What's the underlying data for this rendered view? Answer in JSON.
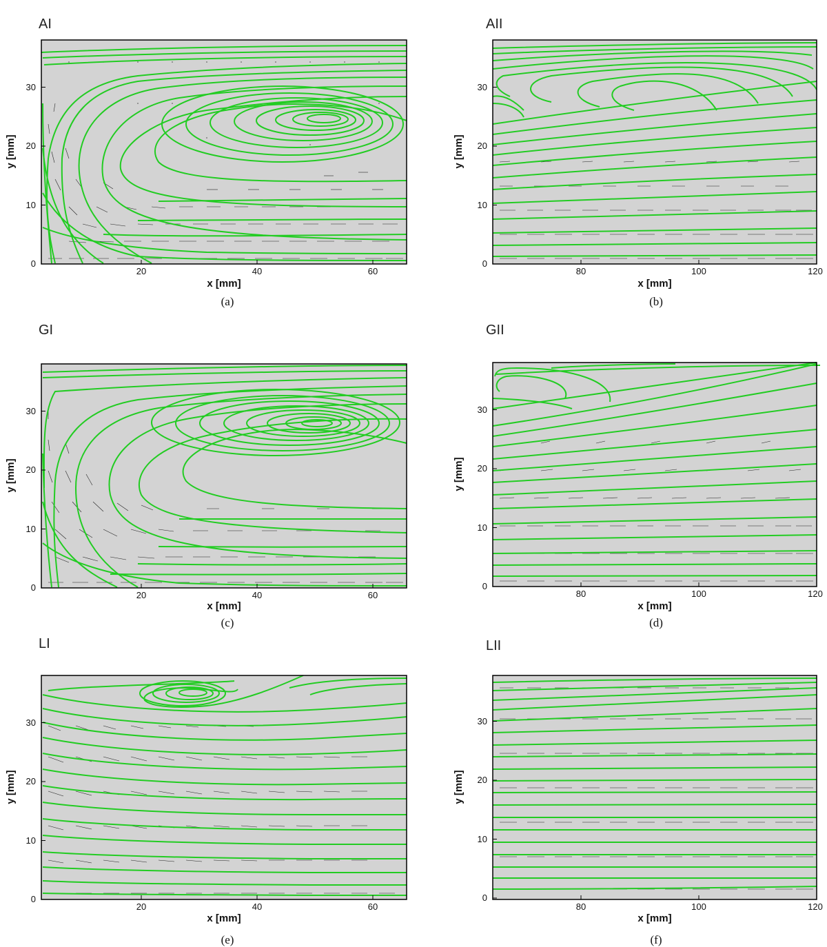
{
  "colors": {
    "background": "#d3d3d3",
    "streamline": "#22cc22",
    "vector": "#222222",
    "frame": "#000000"
  },
  "chart_data": [
    {
      "id": "a",
      "type": "streamline-vector-field",
      "title": "AI",
      "caption": "(a)",
      "xlabel": "x [mm]",
      "ylabel": "y [mm]",
      "xlim": [
        2,
        65
      ],
      "ylim": [
        0,
        38
      ],
      "xticks": [
        "20",
        "40",
        "60"
      ],
      "yticks": [
        "0",
        "10",
        "20",
        "30"
      ],
      "features": {
        "vortex_center": [
          50,
          24
        ],
        "vortex_radius": [
          28,
          10
        ],
        "near_wall_jet_max_y": 12
      }
    },
    {
      "id": "b",
      "type": "streamline-vector-field",
      "title": "AII",
      "caption": "(b)",
      "xlabel": "x [mm]",
      "ylabel": "y [mm]",
      "xlim": [
        65,
        120
      ],
      "ylim": [
        0,
        38
      ],
      "xticks": [
        "80",
        "100",
        "120"
      ],
      "yticks": [
        "0",
        "10",
        "20",
        "30"
      ],
      "features": {
        "recirculation_center_y": 27,
        "recirculation_tip_x": 120
      }
    },
    {
      "id": "c",
      "type": "streamline-vector-field",
      "title": "GI",
      "caption": "(c)",
      "xlabel": "x [mm]",
      "ylabel": "y [mm]",
      "xlim": [
        2,
        65
      ],
      "ylim": [
        0,
        38
      ],
      "xticks": [
        "20",
        "40",
        "60"
      ],
      "yticks": [
        "0",
        "10",
        "20",
        "30"
      ],
      "features": {
        "vortex_center": [
          48,
          28
        ],
        "vortex_radius": [
          28,
          8
        ],
        "near_wall_jet_max_y": 15
      }
    },
    {
      "id": "d",
      "type": "streamline-vector-field",
      "title": "GII",
      "caption": "(d)",
      "xlabel": "x [mm]",
      "ylabel": "y [mm]",
      "xlim": [
        65,
        120
      ],
      "ylim": [
        0,
        38
      ],
      "xticks": [
        "80",
        "100",
        "120"
      ],
      "yticks": [
        "0",
        "10",
        "20",
        "30"
      ],
      "features": {
        "recirculation_center_y": 33,
        "recirculation_tip_x": 85
      }
    },
    {
      "id": "e",
      "type": "streamline-vector-field",
      "title": "LI",
      "caption": "(e)",
      "xlabel": "x [mm]",
      "ylabel": "y [mm]",
      "xlim": [
        2,
        65
      ],
      "ylim": [
        0,
        38
      ],
      "xticks": [
        "20",
        "40",
        "60"
      ],
      "yticks": [
        "0",
        "10",
        "20",
        "30"
      ],
      "features": {
        "vortex_center": [
          28,
          35
        ],
        "vortex_radius": [
          10,
          3
        ],
        "near_wall_jet_max_y": 30
      }
    },
    {
      "id": "f",
      "type": "streamline-vector-field",
      "title": "LII",
      "caption": "(f)",
      "xlabel": "x [mm]",
      "ylabel": "y [mm]",
      "xlim": [
        65,
        120
      ],
      "ylim": [
        0,
        38
      ],
      "xticks": [
        "80",
        "100",
        "120"
      ],
      "yticks": [
        "0",
        "10",
        "20",
        "30"
      ],
      "features": {
        "parallel_flow": true
      }
    }
  ]
}
